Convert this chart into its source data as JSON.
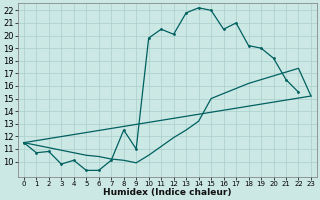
{
  "xlabel": "Humidex (Indice chaleur)",
  "background_color": "#cce8e5",
  "grid_color": "#aacfcc",
  "line_color": "#006060",
  "xlim": [
    -0.5,
    23.5
  ],
  "ylim": [
    8.8,
    22.6
  ],
  "xtick_vals": [
    0,
    1,
    2,
    3,
    4,
    5,
    6,
    7,
    8,
    9,
    10,
    11,
    12,
    13,
    14,
    15,
    16,
    17,
    18,
    19,
    20,
    21,
    22,
    23
  ],
  "ytick_vals": [
    10,
    11,
    12,
    13,
    14,
    15,
    16,
    17,
    18,
    19,
    20,
    21,
    22
  ],
  "main_x": [
    0,
    1,
    2,
    3,
    4,
    5,
    6,
    7,
    8,
    9,
    10,
    11,
    12,
    13,
    14,
    15,
    16,
    17,
    18,
    19,
    20,
    21,
    22
  ],
  "main_y": [
    11.5,
    10.7,
    10.8,
    9.8,
    10.1,
    9.3,
    9.3,
    10.1,
    12.5,
    11.0,
    19.8,
    20.5,
    20.1,
    21.8,
    22.2,
    22.0,
    20.5,
    21.0,
    19.2,
    19.0,
    18.2,
    16.5,
    15.5
  ],
  "line1_x": [
    0,
    23
  ],
  "line1_y": [
    11.5,
    15.2
  ],
  "line2_x": [
    0,
    1,
    2,
    3,
    4,
    5,
    6,
    7,
    8,
    9,
    10,
    11,
    12,
    13,
    14,
    15,
    16,
    17,
    18,
    19,
    20,
    21,
    22,
    23
  ],
  "line2_y": [
    11.5,
    11.3,
    11.1,
    10.9,
    10.7,
    10.5,
    10.4,
    10.2,
    10.1,
    9.9,
    10.5,
    11.2,
    11.9,
    12.5,
    13.2,
    15.0,
    15.4,
    15.8,
    16.2,
    16.5,
    16.8,
    17.1,
    17.4,
    15.2
  ]
}
